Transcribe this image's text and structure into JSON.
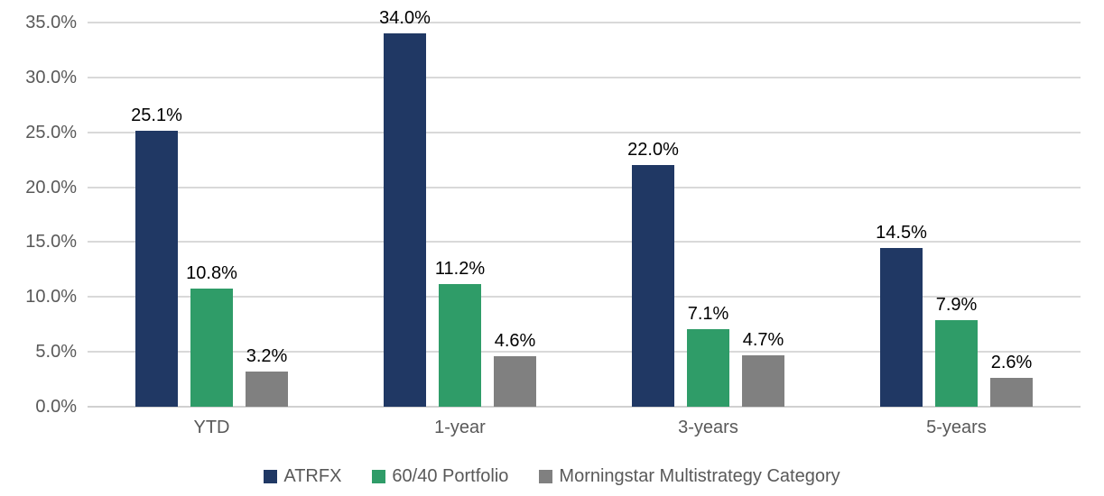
{
  "chart_data": {
    "type": "bar",
    "title": "",
    "xlabel": "",
    "ylabel": "",
    "categories": [
      "YTD",
      "1-year",
      "3-years",
      "5-years"
    ],
    "series": [
      {
        "name": "ATRFX",
        "color": "#203864",
        "values": [
          25.1,
          34.0,
          22.0,
          14.5
        ],
        "labels": [
          "25.1%",
          "34.0%",
          "22.0%",
          "14.5%"
        ]
      },
      {
        "name": "60/40 Portfolio",
        "color": "#2f9c68",
        "values": [
          10.8,
          11.2,
          7.1,
          7.9
        ],
        "labels": [
          "10.8%",
          "11.2%",
          "7.1%",
          "7.9%"
        ]
      },
      {
        "name": "Morningstar Multistrategy Category",
        "color": "#808080",
        "values": [
          3.2,
          4.6,
          4.7,
          2.6
        ],
        "labels": [
          "3.2%",
          "4.6%",
          "4.7%",
          "2.6%"
        ]
      }
    ],
    "ylim": [
      0,
      35
    ],
    "ytick_step": 5,
    "yticks": [
      "35.0%",
      "30.0%",
      "25.0%",
      "20.0%",
      "15.0%",
      "10.0%",
      "5.0%",
      "0.0%"
    ],
    "grid": "horizontal",
    "legend_position": "bottom",
    "colors": {
      "gridline": "#d9d9d9",
      "axis_line": "#d0d0d0",
      "tick_label": "#595959",
      "category_label": "#595959",
      "data_label": "#000000",
      "legend_label": "#595959",
      "background": "#ffffff"
    }
  }
}
